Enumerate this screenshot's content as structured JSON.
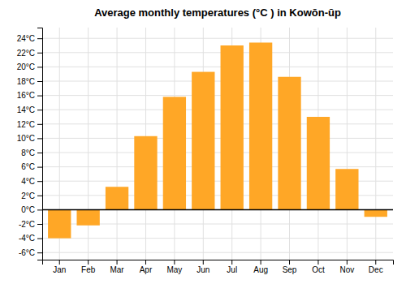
{
  "chart_data": {
    "type": "bar",
    "title": "Average monthly temperatures (°C ) in Kowŏn-ŭp",
    "categories": [
      "Jan",
      "Feb",
      "Mar",
      "Apr",
      "May",
      "Jun",
      "Jul",
      "Aug",
      "Sep",
      "Oct",
      "Nov",
      "Dec"
    ],
    "values": [
      -4.0,
      -2.2,
      3.2,
      10.3,
      15.8,
      19.3,
      23.0,
      23.4,
      18.6,
      13.0,
      5.7,
      -1.0
    ],
    "color": "#FFA726",
    "ylim": [
      -7.0,
      25.5
    ],
    "yticks": [
      {
        "value": -6,
        "label": "-6°C"
      },
      {
        "value": -4,
        "label": "-4°C"
      },
      {
        "value": -2,
        "label": "-2°C"
      },
      {
        "value": 0,
        "label": "0°C"
      },
      {
        "value": 2,
        "label": "2°C"
      },
      {
        "value": 4,
        "label": "4°C"
      },
      {
        "value": 6,
        "label": "6°C"
      },
      {
        "value": 8,
        "label": "8°C"
      },
      {
        "value": 10,
        "label": "10°C"
      },
      {
        "value": 12,
        "label": "12°C"
      },
      {
        "value": 14,
        "label": "14°C"
      },
      {
        "value": 16,
        "label": "16°C"
      },
      {
        "value": 18,
        "label": "18°C"
      },
      {
        "value": 20,
        "label": "20°C"
      },
      {
        "value": 22,
        "label": "22°C"
      },
      {
        "value": 24,
        "label": "24°C"
      }
    ],
    "grid": true
  }
}
